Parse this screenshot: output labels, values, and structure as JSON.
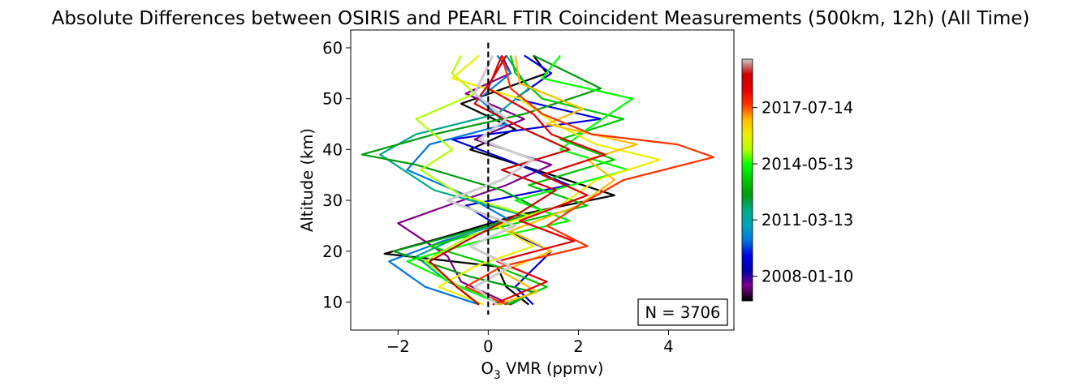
{
  "chart_data": {
    "type": "line",
    "title": "Absolute Differences between OSIRIS and PEARL FTIR Coincident Measurements (500km, 12h) (All Time)",
    "xlabel_main": "O",
    "xlabel_sub": "3",
    "xlabel_rest": " VMR (ppmv)",
    "ylabel": "Altitude (km)",
    "xlim": [
      -3.05,
      5.45
    ],
    "ylim": [
      4.5,
      63.5
    ],
    "x_ticks": [
      -2,
      0,
      2,
      4
    ],
    "x_tick_labels": [
      "−2",
      "0",
      "2",
      "4"
    ],
    "y_ticks": [
      10,
      20,
      30,
      40,
      50,
      60
    ],
    "y_tick_labels": [
      "10",
      "20",
      "30",
      "40",
      "50",
      "60"
    ],
    "reference_line": {
      "x": 0,
      "y_range": [
        7.5,
        61.0
      ],
      "style": "dashed",
      "color": "#000000"
    },
    "annotation": "N = 3706",
    "n_profiles": 3706,
    "altitude_range": [
      9.5,
      58.5
    ],
    "colorbar": {
      "colormap": "nipy_spectral",
      "colors": [
        "#000000",
        "#7d0087",
        "#0000b0",
        "#0000dd",
        "#0077dd",
        "#00a4bb",
        "#00aa88",
        "#009b0f",
        "#00c800",
        "#00ff00",
        "#b0ff00",
        "#eeee00",
        "#ffbd00",
        "#ff3300",
        "#e30000",
        "#cc0000",
        "#cccccc"
      ],
      "tick_labels": [
        "2008-01-10",
        "2011-03-13",
        "2014-05-13",
        "2017-07-14"
      ],
      "tick_fractions": [
        0.102,
        0.335,
        0.567,
        0.8
      ]
    },
    "series": [
      {
        "color": "#000000",
        "points": [
          [
            0.9,
            9.5
          ],
          [
            0.4,
            13
          ],
          [
            0.2,
            17
          ],
          [
            -2.3,
            19.5
          ],
          [
            -0.9,
            23
          ],
          [
            0.6,
            27
          ],
          [
            2.8,
            31
          ],
          [
            1.4,
            35
          ],
          [
            -0.4,
            40
          ],
          [
            0.6,
            44
          ],
          [
            -0.6,
            49
          ],
          [
            1.3,
            55
          ],
          [
            1.0,
            58.5
          ]
        ]
      },
      {
        "color": "#7d0087",
        "points": [
          [
            0.5,
            9.5
          ],
          [
            -0.6,
            14
          ],
          [
            -0.9,
            19
          ],
          [
            -2.0,
            25.5
          ],
          [
            -0.9,
            29
          ],
          [
            0.4,
            33
          ],
          [
            1.4,
            37
          ],
          [
            -0.3,
            42
          ],
          [
            0.8,
            46
          ],
          [
            -0.5,
            51
          ],
          [
            0.5,
            55
          ],
          [
            0.3,
            58.5
          ]
        ]
      },
      {
        "color": "#0000dd",
        "points": [
          [
            1.0,
            9.5
          ],
          [
            0.6,
            13
          ],
          [
            1.4,
            20
          ],
          [
            0.4,
            24
          ],
          [
            -0.5,
            29
          ],
          [
            1.8,
            33
          ],
          [
            0.4,
            38
          ],
          [
            -0.8,
            42
          ],
          [
            2.5,
            46
          ],
          [
            0.6,
            50
          ],
          [
            1.4,
            55
          ],
          [
            0.8,
            58.5
          ]
        ]
      },
      {
        "color": "#0077dd",
        "points": [
          [
            -0.2,
            9.5
          ],
          [
            -1.4,
            13
          ],
          [
            -2.2,
            18
          ],
          [
            -1.0,
            22
          ],
          [
            0.5,
            26
          ],
          [
            -0.5,
            31
          ],
          [
            -1.8,
            36
          ],
          [
            -1.3,
            41
          ],
          [
            0.4,
            45
          ],
          [
            -0.2,
            50
          ],
          [
            0.5,
            55
          ],
          [
            0.2,
            58.5
          ]
        ]
      },
      {
        "color": "#00aa88",
        "points": [
          [
            0.3,
            9.5
          ],
          [
            -0.9,
            14
          ],
          [
            -1.6,
            19
          ],
          [
            -0.6,
            23
          ],
          [
            0.8,
            27
          ],
          [
            -1.2,
            32
          ],
          [
            -2.4,
            39
          ],
          [
            -1.6,
            43
          ],
          [
            0.2,
            47
          ],
          [
            0.9,
            52
          ],
          [
            0.4,
            58.5
          ]
        ]
      },
      {
        "color": "#009b0f",
        "points": [
          [
            0.5,
            9.5
          ],
          [
            1.0,
            12
          ],
          [
            -0.4,
            15
          ],
          [
            -2.1,
            20
          ],
          [
            -0.8,
            23
          ],
          [
            1.2,
            28
          ],
          [
            0.3,
            32
          ],
          [
            -1.6,
            37
          ],
          [
            -2.8,
            39
          ],
          [
            -1.2,
            43
          ],
          [
            0.8,
            47
          ],
          [
            2.5,
            52
          ],
          [
            1.0,
            58.5
          ]
        ]
      },
      {
        "color": "#00c800",
        "points": [
          [
            0.4,
            9.5
          ],
          [
            1.3,
            13
          ],
          [
            0.2,
            17
          ],
          [
            -1.3,
            21
          ],
          [
            0.4,
            25
          ],
          [
            2.2,
            29
          ],
          [
            0.9,
            33
          ],
          [
            2.8,
            38
          ],
          [
            1.6,
            42
          ],
          [
            3.0,
            46
          ],
          [
            1.2,
            50
          ],
          [
            0.6,
            55
          ],
          [
            0.5,
            58.5
          ]
        ]
      },
      {
        "color": "#00ff00",
        "points": [
          [
            0.3,
            9.5
          ],
          [
            -0.6,
            13
          ],
          [
            -1.8,
            18
          ],
          [
            -0.2,
            22
          ],
          [
            1.8,
            26
          ],
          [
            0.6,
            30
          ],
          [
            3.1,
            36
          ],
          [
            1.6,
            40
          ],
          [
            2.2,
            44
          ],
          [
            3.2,
            50
          ],
          [
            1.2,
            54
          ],
          [
            1.6,
            58.5
          ]
        ]
      },
      {
        "color": "#b0ff00",
        "points": [
          [
            -0.2,
            9.5
          ],
          [
            -0.8,
            14
          ],
          [
            -1.4,
            18
          ],
          [
            -0.4,
            23
          ],
          [
            0.9,
            27
          ],
          [
            -0.6,
            31
          ],
          [
            -1.5,
            36
          ],
          [
            -0.8,
            40
          ],
          [
            -1.6,
            46
          ],
          [
            -0.3,
            51
          ],
          [
            -0.8,
            55
          ],
          [
            -0.6,
            58.5
          ]
        ]
      },
      {
        "color": "#eeee00",
        "points": [
          [
            -0.1,
            9.5
          ],
          [
            -1.1,
            13
          ],
          [
            -0.3,
            17
          ],
          [
            1.0,
            21
          ],
          [
            0.2,
            25
          ],
          [
            1.6,
            29
          ],
          [
            2.4,
            34
          ],
          [
            3.8,
            38
          ],
          [
            2.4,
            41
          ],
          [
            1.5,
            45
          ],
          [
            0.7,
            50
          ],
          [
            -0.8,
            54
          ],
          [
            -0.2,
            58.5
          ]
        ]
      },
      {
        "color": "#ffbd00",
        "points": [
          [
            0.2,
            9.5
          ],
          [
            1.1,
            12
          ],
          [
            0.3,
            16
          ],
          [
            1.4,
            20
          ],
          [
            0.5,
            24
          ],
          [
            2.0,
            29
          ],
          [
            2.8,
            34
          ],
          [
            2.2,
            38
          ],
          [
            3.3,
            41
          ],
          [
            1.3,
            45
          ],
          [
            2.1,
            48
          ],
          [
            0.7,
            53
          ],
          [
            0.6,
            58.5
          ]
        ]
      },
      {
        "color": "#ff3300",
        "points": [
          [
            0.4,
            9.5
          ],
          [
            -0.5,
            13
          ],
          [
            0.3,
            17
          ],
          [
            2.2,
            21
          ],
          [
            1.3,
            25
          ],
          [
            2.0,
            29
          ],
          [
            3.0,
            34
          ],
          [
            5.0,
            38.5
          ],
          [
            4.2,
            41
          ],
          [
            2.3,
            43
          ],
          [
            1.2,
            47
          ],
          [
            0.5,
            52
          ],
          [
            0.3,
            58.5
          ]
        ]
      },
      {
        "color": "#e30000",
        "points": [
          [
            0.1,
            9.5
          ],
          [
            1.3,
            14
          ],
          [
            0.2,
            18
          ],
          [
            1.9,
            22
          ],
          [
            0.7,
            26
          ],
          [
            2.2,
            31
          ],
          [
            1.2,
            35
          ],
          [
            2.6,
            39
          ],
          [
            1.4,
            43
          ],
          [
            1.0,
            47
          ],
          [
            0.0,
            52
          ],
          [
            0.3,
            58.5
          ]
        ]
      },
      {
        "color": "#cc0000",
        "points": [
          [
            -0.2,
            9.5
          ],
          [
            -0.7,
            13
          ],
          [
            -1.3,
            18
          ],
          [
            -0.5,
            22
          ],
          [
            0.6,
            27
          ],
          [
            1.5,
            32
          ],
          [
            0.3,
            36
          ],
          [
            1.8,
            40
          ],
          [
            0.8,
            44
          ],
          [
            -0.3,
            49
          ],
          [
            0.1,
            54
          ],
          [
            0.4,
            58.5
          ]
        ]
      },
      {
        "color": "#cccccc",
        "points": [
          [
            0.2,
            9.5
          ],
          [
            -0.3,
            13
          ],
          [
            0.5,
            17
          ],
          [
            -0.4,
            21
          ],
          [
            0.6,
            25
          ],
          [
            -0.9,
            30
          ],
          [
            0.3,
            34
          ],
          [
            1.0,
            38
          ],
          [
            -0.2,
            42
          ],
          [
            0.4,
            46
          ],
          [
            -0.3,
            51
          ],
          [
            0.1,
            58.5
          ]
        ]
      }
    ]
  }
}
